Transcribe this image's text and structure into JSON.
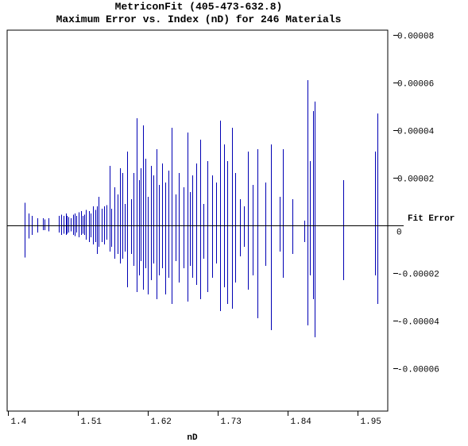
{
  "chart_data": {
    "type": "bar",
    "title": "MetriconFit (405-473-632.8)",
    "subtitle": "Maximum Error vs. Index (nD) for 246 Materials",
    "xlabel": "nD",
    "ylabel": "Fit Error",
    "xlim": [
      1.4,
      2.0
    ],
    "ylim": [
      -8e-05,
      8e-05
    ],
    "x_ticks": [
      1.4,
      1.51,
      1.62,
      1.73,
      1.84,
      1.95
    ],
    "x_tick_labels": [
      "1.4",
      "1.51",
      "1.62",
      "1.73",
      "1.84",
      "1.95"
    ],
    "y_ticks": [
      8e-05,
      6e-05,
      4e-05,
      2e-05,
      0,
      -2e-05,
      -4e-05,
      -6e-05
    ],
    "y_tick_labels": [
      "0.00008",
      "0.00006",
      "0.00004",
      "0.00002",
      "0",
      "-0.00002",
      "-0.00004",
      "-0.00006"
    ],
    "grid": false,
    "legend": "none",
    "bar_color": "#0000b4",
    "series": [
      {
        "x": [
          1.426,
          1.432,
          1.437,
          1.446,
          1.455,
          1.458,
          1.464,
          1.48,
          1.484,
          1.488,
          1.491,
          1.493,
          1.495,
          1.499,
          1.502,
          1.505,
          1.508,
          1.511,
          1.515,
          1.517,
          1.52,
          1.523,
          1.527,
          1.53,
          1.534,
          1.537,
          1.54,
          1.543,
          1.547,
          1.551,
          1.555,
          1.56,
          1.563,
          1.568,
          1.572,
          1.576,
          1.58,
          1.584,
          1.588,
          1.594,
          1.598,
          1.602,
          1.606,
          1.609,
          1.612,
          1.616,
          1.62,
          1.625,
          1.629,
          1.634,
          1.638,
          1.642,
          1.648,
          1.652,
          1.658,
          1.664,
          1.669,
          1.676,
          1.682,
          1.686,
          1.69,
          1.696,
          1.702,
          1.708,
          1.714,
          1.721,
          1.728,
          1.734,
          1.74,
          1.745,
          1.752,
          1.758,
          1.765,
          1.771,
          1.778,
          1.785,
          1.793,
          1.805,
          1.814,
          1.827,
          1.833,
          1.848,
          1.866,
          1.871,
          1.875,
          1.88,
          1.883,
          1.928,
          1.977,
          1.981
        ],
        "y_max": [
          9.5e-06,
          5e-06,
          4e-06,
          3e-06,
          3e-06,
          2.5e-06,
          3e-06,
          4e-06,
          4.5e-06,
          4e-06,
          5e-06,
          4e-06,
          3.5e-06,
          3e-06,
          4.5e-06,
          5e-06,
          4e-06,
          5.5e-06,
          6e-06,
          4e-06,
          4.5e-06,
          6.5e-06,
          6e-06,
          5e-06,
          8e-06,
          6.5e-06,
          8e-06,
          1.2e-05,
          7e-06,
          8e-06,
          8.5e-06,
          2.5e-05,
          7e-06,
          1.6e-05,
          1.3e-05,
          2.4e-05,
          2.2e-05,
          9e-06,
          3.1e-05,
          1.1e-05,
          2.2e-05,
          4.5e-05,
          1.9e-05,
          2.4e-05,
          4.2e-05,
          2.8e-05,
          1.2e-05,
          2.5e-05,
          2.1e-05,
          3.2e-05,
          1.7e-05,
          2.6e-05,
          1.8e-05,
          2.3e-05,
          4.1e-05,
          1.3e-05,
          2.2e-05,
          1.6e-05,
          3.9e-05,
          1.4e-05,
          2.1e-05,
          2.6e-05,
          3.6e-05,
          9e-06,
          2.7e-05,
          2.1e-05,
          1.8e-05,
          4.4e-05,
          3.4e-05,
          2.7e-05,
          4.1e-05,
          2.2e-05,
          1.1e-05,
          8e-06,
          3.1e-05,
          1.7e-05,
          3.2e-05,
          1.8e-05,
          3.4e-05,
          1.2e-05,
          3.2e-05,
          1.1e-05,
          2e-06,
          6.1e-05,
          2.7e-05,
          4.8e-05,
          5.2e-05,
          1.9e-05,
          3.1e-05,
          4.7e-05
        ],
        "y_min": [
          -1.35e-05,
          -5.5e-06,
          -4e-06,
          -3e-06,
          -2e-06,
          -2e-06,
          -2.5e-06,
          -3e-06,
          -4e-06,
          -3.5e-06,
          -4e-06,
          -3.5e-06,
          -3e-06,
          -2.5e-06,
          -4e-06,
          -4.5e-06,
          -3e-06,
          -5e-06,
          -4e-06,
          -3.5e-06,
          -4e-06,
          -6e-06,
          -7e-06,
          -5e-06,
          -8e-06,
          -7e-06,
          -1.2e-05,
          -9e-06,
          -7e-06,
          -8e-06,
          -6e-06,
          -1.1e-05,
          -9e-06,
          -1.4e-05,
          -1.2e-05,
          -1.6e-05,
          -1.4e-05,
          -1.1e-05,
          -2.6e-05,
          -1.2e-05,
          -1.7e-05,
          -2.8e-05,
          -2.1e-05,
          -1.5e-05,
          -2.7e-05,
          -1.8e-05,
          -2.9e-05,
          -2.3e-05,
          -1.6e-05,
          -3.1e-05,
          -2.1e-05,
          -1.8e-05,
          -2.9e-05,
          -2.2e-05,
          -3.3e-05,
          -1.5e-05,
          -2.4e-05,
          -1.8e-05,
          -3.2e-05,
          -1.7e-05,
          -2.2e-05,
          -2.5e-05,
          -3.1e-05,
          -1.4e-05,
          -2.8e-05,
          -2.2e-05,
          -1.6e-05,
          -3.6e-05,
          -2.6e-05,
          -3.3e-05,
          -3.5e-05,
          -2.4e-05,
          -1.3e-05,
          -9e-06,
          -2.7e-05,
          -2.1e-05,
          -3.9e-05,
          -1.7e-05,
          -4.4e-05,
          -1.1e-05,
          -2.2e-05,
          -1.2e-05,
          -7e-06,
          -4.2e-05,
          -2.1e-05,
          -3.1e-05,
          -4.7e-05,
          -2.3e-05,
          -2.1e-05,
          -3.3e-05
        ]
      }
    ]
  }
}
